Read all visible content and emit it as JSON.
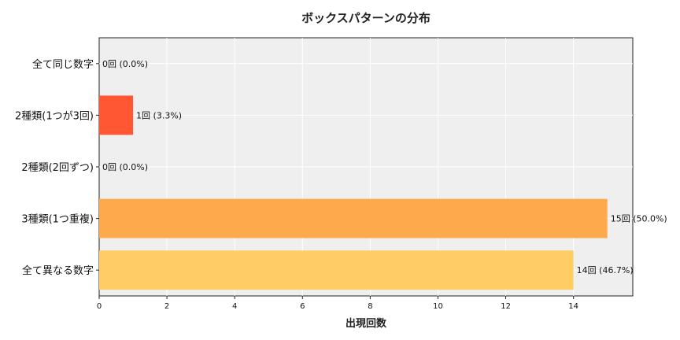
{
  "chart_data": {
    "type": "bar",
    "orientation": "horizontal",
    "title": "ボックスパターンの分布",
    "xlabel": "出現回数",
    "ylabel": "",
    "xlim": [
      0,
      15.75
    ],
    "xticks": [
      0,
      2,
      4,
      6,
      8,
      10,
      12,
      14
    ],
    "grid": true,
    "categories": [
      "全て同じ数字",
      "2種類(1つが3回)",
      "2種類(2回ずつ)",
      "3種類(1つ重複)",
      "全て異なる数字"
    ],
    "values": [
      0,
      1,
      0,
      15,
      14
    ],
    "labels": [
      "0回 (0.0%)",
      "1回 (3.3%)",
      "0回 (0.0%)",
      "15回 (50.0%)",
      "14回 (46.7%)"
    ],
    "colors": [
      "#FF0000",
      "#FF5733",
      "#FF8C00",
      "#FFA94D",
      "#FFCC66"
    ]
  }
}
